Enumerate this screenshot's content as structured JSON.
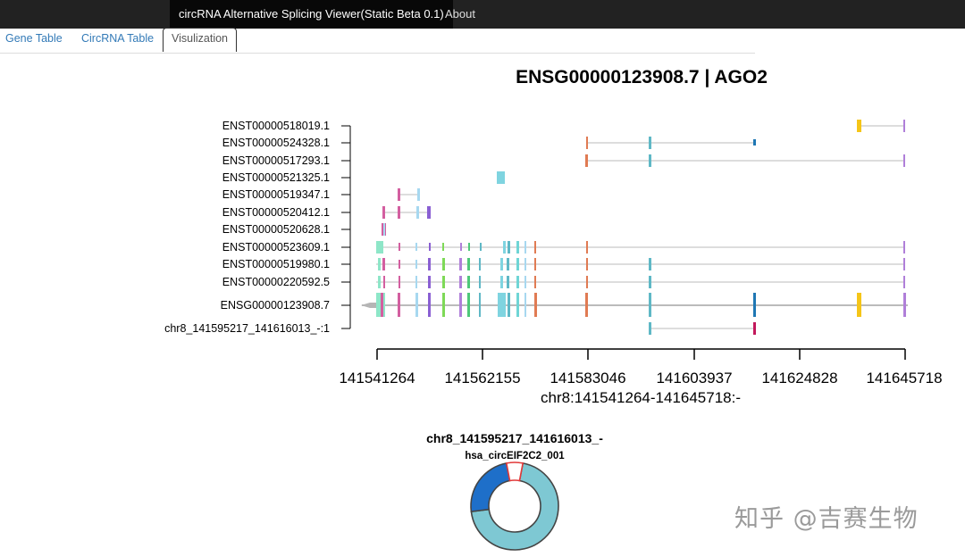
{
  "navbar": {
    "brand": "circRNA Alternative Splicing Viewer(Static Beta 0.1)",
    "about_label": "About"
  },
  "tabs": [
    {
      "label": "Gene Table",
      "active": false
    },
    {
      "label": "CircRNA Table",
      "active": false
    },
    {
      "label": "Visulization",
      "active": true
    }
  ],
  "gene_plot": {
    "title": "ENSG00000123908.7 | AGO2",
    "axis_ticks": [
      "141541264",
      "141562155",
      "141583046",
      "141603937",
      "141624828",
      "141645718"
    ],
    "axis_label": "chr8:141541264-141645718:-",
    "tracks": [
      "ENST00000518019.1",
      "ENST00000524328.1",
      "ENST00000517293.1",
      "ENST00000521325.1",
      "ENST00000519347.1",
      "ENST00000520412.1",
      "ENST00000520628.1",
      "ENST00000523609.1",
      "ENST00000519980.1",
      "ENST00000220592.5",
      "ENSG00000123908.7",
      "chr8_141595217_141616013_-:1"
    ]
  },
  "donut": {
    "title": "chr8_141595217_141616013_-",
    "subtitle": "hsa_circEIF2C2_001",
    "segment_fractions": [
      0.7,
      0.24,
      0.06
    ],
    "segment_colors": [
      "#7ec8d3",
      "#1e6fc9",
      "#ffffff"
    ],
    "outline_colors": [
      "#444444",
      "#444444",
      "#e23a3a"
    ]
  },
  "watermark": "知乎 @吉赛生物"
}
